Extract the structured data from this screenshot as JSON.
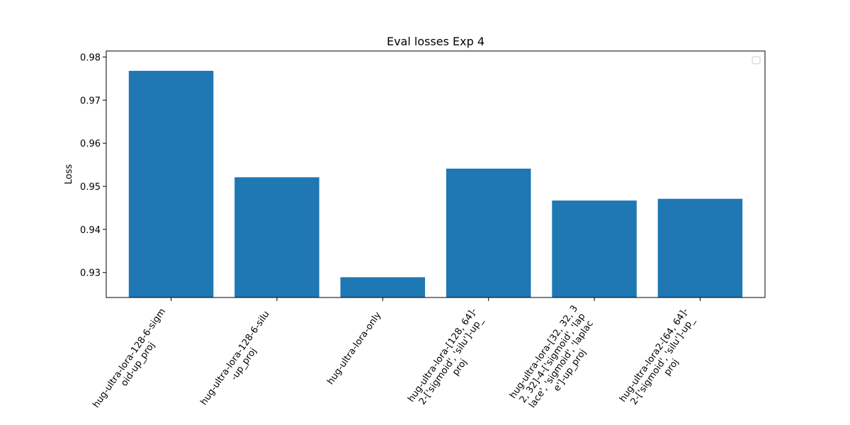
{
  "chart_data": {
    "type": "bar",
    "title": "Eval losses Exp 4",
    "xlabel": "",
    "ylabel": "Loss",
    "ylim": [
      0.9242,
      0.9814
    ],
    "yticks": [
      0.93,
      0.94,
      0.95,
      0.96,
      0.97,
      0.98
    ],
    "ytick_labels": [
      "0.93",
      "0.94",
      "0.95",
      "0.96",
      "0.97",
      "0.98"
    ],
    "categories": [
      [
        "hug-ultra-lora-128-6-sigm",
        "oid-up_proj"
      ],
      [
        "hug-ultra-lora-128-6-silu",
        "-up_proj"
      ],
      [
        "hug-ultra-lora-only"
      ],
      [
        "hug-ultra-lora-[128, 64]-",
        "2-['sigmoid', 'silu']-up_",
        "proj"
      ],
      [
        "hug-ultra-lora-[32, 32, 3",
        "2, 32]-4-['sigmoid', 'lap",
        "lace', 'sigmoid', 'laplac",
        "e']-up_proj"
      ],
      [
        "hug-ultra-lora2-[64, 64]-",
        "2-['sigmoid', 'silu']-up_",
        "proj"
      ]
    ],
    "values": [
      0.9768,
      0.9521,
      0.9289,
      0.9541,
      0.9467,
      0.9471
    ],
    "bar_color": "#1f77b4",
    "legend": {
      "placement": "upper-right",
      "entries": []
    },
    "grid": false
  }
}
